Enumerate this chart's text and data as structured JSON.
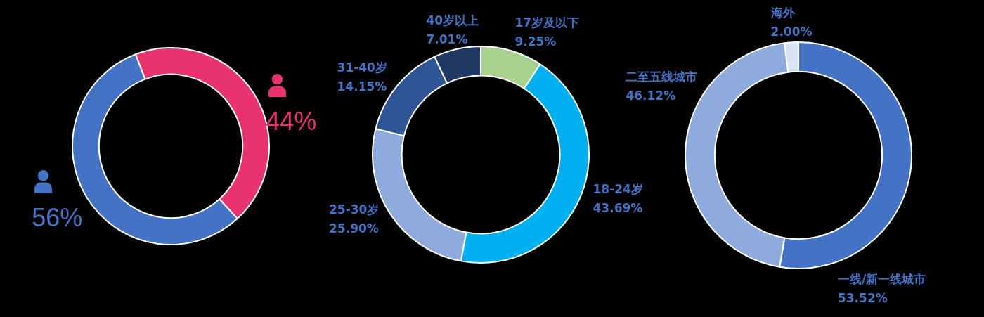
{
  "chart_data": [
    {
      "type": "donut",
      "categories": [
        null,
        null
      ],
      "values": [
        44,
        56
      ],
      "colors": [
        "#e8336e",
        "#4472c4"
      ],
      "value_labels": [
        "44%",
        "56%"
      ]
    },
    {
      "type": "donut",
      "categories": [
        "17岁及以下",
        "18-24岁",
        "25-30岁",
        "31-40岁",
        "40岁以上"
      ],
      "values": [
        9.25,
        43.69,
        25.9,
        14.15,
        7.01
      ],
      "colors": [
        "#a9d18e",
        "#00b0f0",
        "#8faadc",
        "#2f5597",
        "#203864"
      ],
      "value_labels": [
        "9.25%",
        "43.69%",
        "25.90%",
        "14.15%",
        "7.01%"
      ]
    },
    {
      "type": "donut",
      "categories": [
        "一线/新一线城市",
        "二至五线城市",
        "海外"
      ],
      "values": [
        53.52,
        46.12,
        2.0
      ],
      "colors": [
        "#4472c4",
        "#8faadc",
        "#dae3f3"
      ],
      "value_labels": [
        "53.52%",
        "46.12%",
        "2.00%"
      ]
    }
  ]
}
